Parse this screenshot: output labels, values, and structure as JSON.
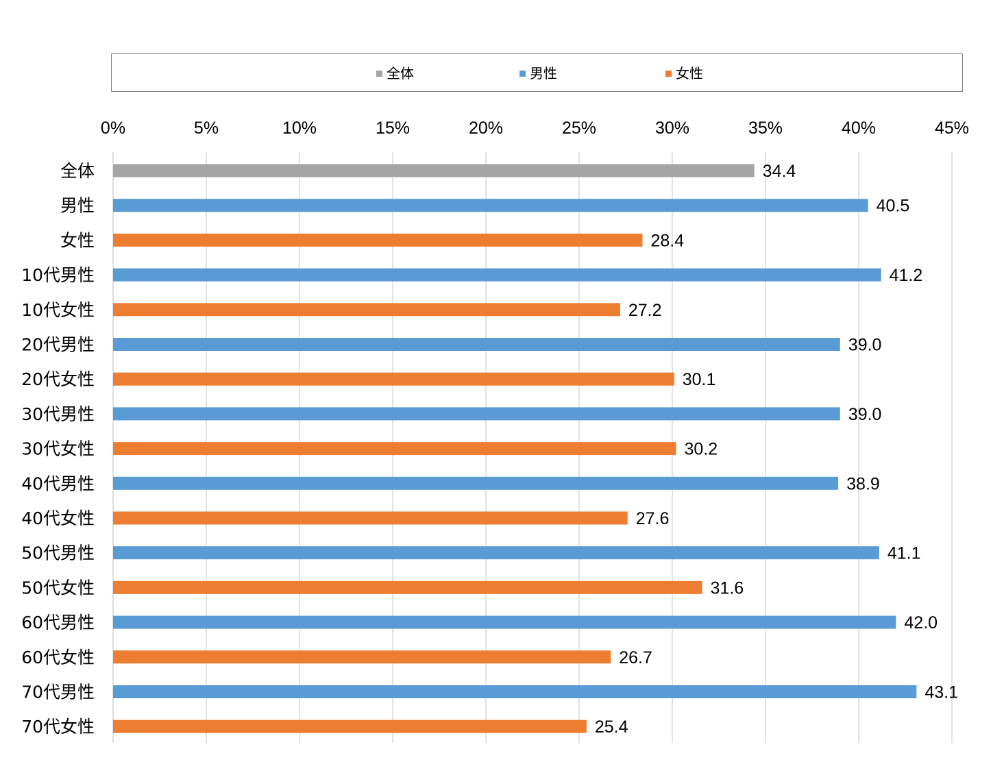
{
  "chart_data": {
    "type": "bar",
    "orientation": "horizontal",
    "title": "",
    "xlabel": "",
    "ylabel": "",
    "xlim": [
      0,
      45
    ],
    "x_ticks": [
      "0%",
      "5%",
      "10%",
      "15%",
      "20%",
      "25%",
      "30%",
      "35%",
      "40%",
      "45%"
    ],
    "grid": true,
    "legend_position": "top",
    "legend": [
      {
        "name": "全体",
        "color": "#a5a5a5"
      },
      {
        "name": "男性",
        "color": "#5b9bd5"
      },
      {
        "name": "女性",
        "color": "#ed7d31"
      }
    ],
    "categories": [
      "全体",
      "男性",
      "女性",
      "10代男性",
      "10代女性",
      "20代男性",
      "20代女性",
      "30代男性",
      "30代女性",
      "40代男性",
      "40代女性",
      "50代男性",
      "50代女性",
      "60代男性",
      "60代女性",
      "70代男性",
      "70代女性"
    ],
    "values": [
      34.4,
      40.5,
      28.4,
      41.2,
      27.2,
      39.0,
      30.1,
      39.0,
      30.2,
      38.9,
      27.6,
      41.1,
      31.6,
      42.0,
      26.7,
      43.1,
      25.4
    ],
    "value_labels": [
      "34.4",
      "40.5",
      "28.4",
      "41.2",
      "27.2",
      "39.0",
      "30.1",
      "39.0",
      "30.2",
      "38.9",
      "27.6",
      "41.1",
      "31.6",
      "42.0",
      "26.7",
      "43.1",
      "25.4"
    ],
    "bar_series": [
      "全体",
      "男性",
      "女性",
      "男性",
      "女性",
      "男性",
      "女性",
      "男性",
      "女性",
      "男性",
      "女性",
      "男性",
      "女性",
      "男性",
      "女性",
      "男性",
      "女性"
    ]
  }
}
